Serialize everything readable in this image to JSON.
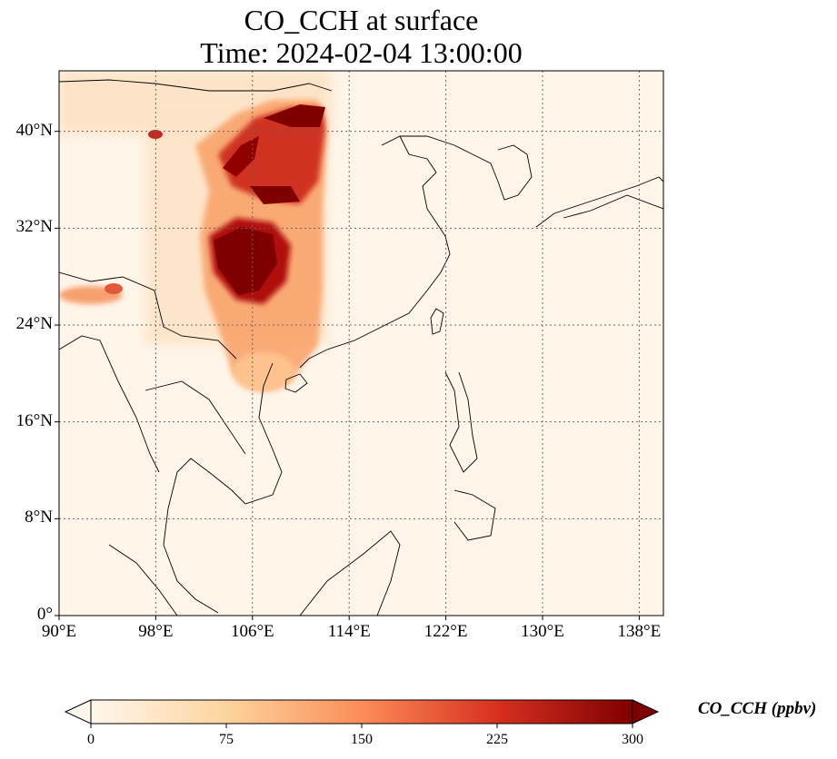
{
  "title": {
    "line1": "CO_CCH at surface",
    "line2": "Time: 2024-02-04 13:00:00"
  },
  "map": {
    "lon_range": [
      90,
      140
    ],
    "lat_range": [
      0,
      45
    ],
    "lat_ticks": [
      {
        "value": 0,
        "label": "0°"
      },
      {
        "value": 8,
        "label": "8°N"
      },
      {
        "value": 16,
        "label": "16°N"
      },
      {
        "value": 24,
        "label": "24°N"
      },
      {
        "value": 32,
        "label": "32°N"
      },
      {
        "value": 40,
        "label": "40°N"
      }
    ],
    "lon_ticks": [
      {
        "value": 90,
        "label": "90°E"
      },
      {
        "value": 98,
        "label": "98°E"
      },
      {
        "value": 106,
        "label": "106°E"
      },
      {
        "value": 114,
        "label": "114°E"
      },
      {
        "value": 122,
        "label": "122°E"
      },
      {
        "value": 130,
        "label": "130°E"
      },
      {
        "value": 138,
        "label": "138°E"
      }
    ],
    "gridlines": "dotted",
    "colormap": "OrRd",
    "background_color": "#fff5e9"
  },
  "colorbar": {
    "title": "CO_CCH (ppbv)",
    "range": [
      0,
      300
    ],
    "extend": "both",
    "ticks": [
      {
        "value": 0,
        "label": "0"
      },
      {
        "value": 75,
        "label": "75"
      },
      {
        "value": 150,
        "label": "150"
      },
      {
        "value": 225,
        "label": "225"
      },
      {
        "value": 300,
        "label": "300"
      }
    ],
    "colors": [
      "#fff7ec",
      "#fdd49e",
      "#fc8d59",
      "#d7301f",
      "#7f0000"
    ]
  }
}
